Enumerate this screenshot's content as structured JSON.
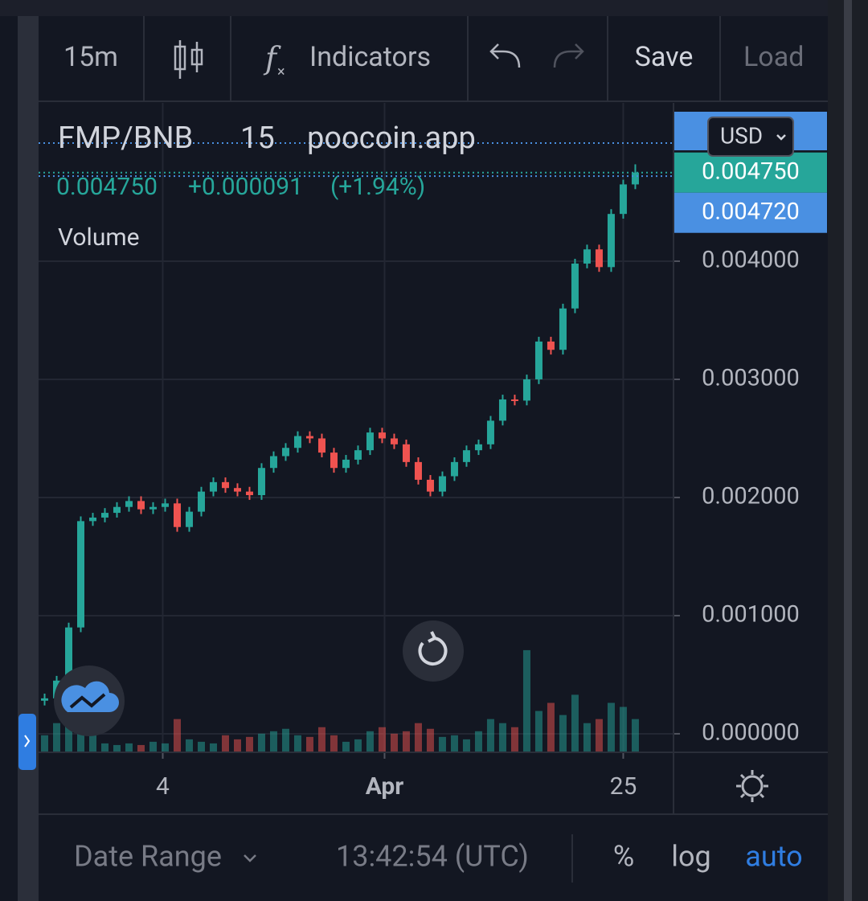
{
  "toolbar": {
    "interval": "15m",
    "indicators": "Indicators",
    "save": "Save",
    "load": "Load"
  },
  "legend": {
    "symbol": "FMP/BNB",
    "interval": "15",
    "source": "poocoin.app",
    "price": "0.004750",
    "change": "+0.000091",
    "change_pct": "(+1.94%)",
    "volume": "Volume"
  },
  "currency": "USD",
  "price_labels": [
    {
      "value": 0.00475,
      "label": "0.004750",
      "color": "#26a69a"
    },
    {
      "value": 0.00472,
      "label": "0.004720",
      "color": "#4a90e2"
    }
  ],
  "footer": {
    "date_range": "Date Range",
    "time": "13:42:54 (UTC)",
    "percent": "%",
    "log": "log",
    "auto": "auto"
  },
  "chart_data": {
    "type": "candlestick",
    "open": [
      0.00028,
      0.0003,
      0.00045,
      0.0009,
      0.0018,
      0.00183,
      0.00187,
      0.00192,
      0.00197,
      0.0019,
      0.00192,
      0.00195,
      0.00175,
      0.00188,
      0.00205,
      0.00213,
      0.00208,
      0.00205,
      0.00202,
      0.00225,
      0.00235,
      0.00242,
      0.00252,
      0.0025,
      0.00238,
      0.00225,
      0.00232,
      0.0024,
      0.00255,
      0.0025,
      0.00245,
      0.0023,
      0.00215,
      0.00205,
      0.00218,
      0.0023,
      0.0024,
      0.00245,
      0.00265,
      0.00283,
      0.00282,
      0.003,
      0.00332,
      0.00325,
      0.0036,
      0.00398,
      0.0041,
      0.00395,
      0.0044,
      0.00465
    ],
    "high": [
      0.00034,
      0.00049,
      0.00094,
      0.00184,
      0.00187,
      0.00191,
      0.00196,
      0.00201,
      0.00201,
      0.00196,
      0.00199,
      0.00199,
      0.00192,
      0.00209,
      0.00217,
      0.00217,
      0.00212,
      0.00209,
      0.00229,
      0.00239,
      0.00246,
      0.00256,
      0.00256,
      0.00254,
      0.00242,
      0.00236,
      0.00244,
      0.00259,
      0.00259,
      0.00254,
      0.00249,
      0.00234,
      0.00219,
      0.00222,
      0.00234,
      0.00244,
      0.00249,
      0.00269,
      0.00287,
      0.00287,
      0.00304,
      0.00336,
      0.00336,
      0.00364,
      0.00402,
      0.00414,
      0.00414,
      0.00444,
      0.00469,
      0.00482
    ],
    "low": [
      0.00024,
      0.00026,
      0.00041,
      0.00086,
      0.00176,
      0.00179,
      0.00183,
      0.00188,
      0.00186,
      0.00186,
      0.00188,
      0.00171,
      0.00171,
      0.00184,
      0.00201,
      0.00204,
      0.00201,
      0.00198,
      0.00198,
      0.00221,
      0.00231,
      0.00238,
      0.00246,
      0.00234,
      0.00221,
      0.00221,
      0.00228,
      0.00236,
      0.00246,
      0.00241,
      0.00226,
      0.00211,
      0.00201,
      0.00201,
      0.00214,
      0.00226,
      0.00236,
      0.00241,
      0.00261,
      0.00278,
      0.00278,
      0.00296,
      0.00321,
      0.00321,
      0.00356,
      0.00394,
      0.00391,
      0.00391,
      0.00436,
      0.00461
    ],
    "close": [
      0.0003,
      0.00045,
      0.0009,
      0.0018,
      0.00183,
      0.00187,
      0.00192,
      0.00197,
      0.0019,
      0.00192,
      0.00195,
      0.00175,
      0.00188,
      0.00205,
      0.00213,
      0.00208,
      0.00205,
      0.00202,
      0.00225,
      0.00235,
      0.00242,
      0.00252,
      0.0025,
      0.00238,
      0.00225,
      0.00232,
      0.0024,
      0.00255,
      0.0025,
      0.00245,
      0.0023,
      0.00215,
      0.00205,
      0.00218,
      0.0023,
      0.0024,
      0.00245,
      0.00265,
      0.00283,
      0.00282,
      0.003,
      0.00332,
      0.00325,
      0.0036,
      0.00398,
      0.0041,
      0.00395,
      0.0044,
      0.00465,
      0.00475
    ],
    "volume": [
      20,
      35,
      60,
      95,
      30,
      10,
      8,
      10,
      8,
      12,
      10,
      40,
      15,
      12,
      10,
      20,
      15,
      18,
      22,
      25,
      28,
      20,
      18,
      30,
      20,
      12,
      15,
      25,
      30,
      22,
      25,
      35,
      28,
      18,
      20,
      15,
      25,
      40,
      35,
      30,
      125,
      50,
      60,
      45,
      70,
      35,
      40,
      60,
      55,
      40
    ],
    "up_color": "#26a69a",
    "down_color": "#ef5350",
    "xlim": [
      0,
      52.67
    ],
    "xticks": [
      {
        "value": 10.3,
        "label": "4"
      },
      {
        "value": 28.7,
        "label": "Apr"
      },
      {
        "value": 48.5,
        "label": "25"
      }
    ],
    "ylim": [
      -0.00015,
      0.00534
    ],
    "yticks": [
      {
        "value": 0,
        "label": "0.000000"
      },
      {
        "value": 0.001,
        "label": "0.001000"
      },
      {
        "value": 0.002,
        "label": "0.002000"
      },
      {
        "value": 0.003,
        "label": "0.003000"
      },
      {
        "value": 0.004,
        "label": "0.004000"
      }
    ],
    "y2lim": [
      0,
      800
    ],
    "grid": true
  }
}
